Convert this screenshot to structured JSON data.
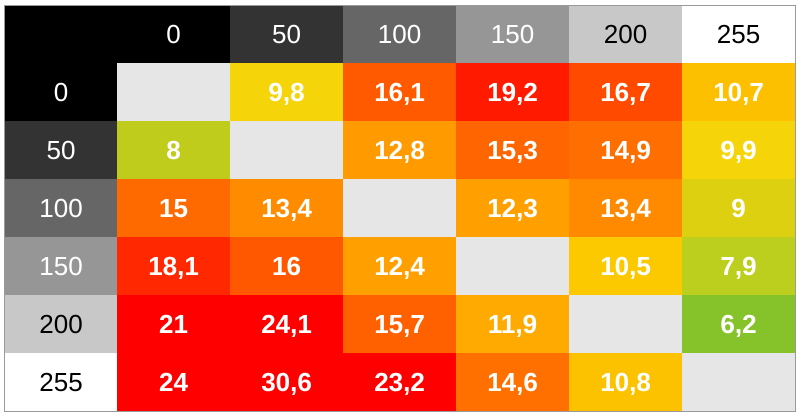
{
  "chart_data": {
    "type": "heatmap",
    "title": "",
    "corner_label": "",
    "x_labels": [
      "0",
      "50",
      "100",
      "150",
      "200",
      "255"
    ],
    "y_labels": [
      "0",
      "50",
      "100",
      "150",
      "200",
      "255"
    ],
    "header_colors": [
      "#000000",
      "#333333",
      "#666666",
      "#969696",
      "#c8c8c8",
      "#ffffff"
    ],
    "header_text_colors": [
      "#ffffff",
      "#ffffff",
      "#ffffff",
      "#ffffff",
      "#000000",
      "#000000"
    ],
    "values": [
      [
        "",
        "9,8",
        "16,1",
        "19,2",
        "16,7",
        "10,7"
      ],
      [
        "8",
        "",
        "12,8",
        "15,3",
        "14,9",
        "9,9"
      ],
      [
        "15",
        "13,4",
        "",
        "12,3",
        "13,4",
        "9"
      ],
      [
        "18,1",
        "16",
        "12,4",
        "",
        "10,5",
        "7,9"
      ],
      [
        "21",
        "24,1",
        "15,7",
        "11,9",
        "",
        "6,2"
      ],
      [
        "24",
        "30,6",
        "23,2",
        "14,6",
        "10,8",
        ""
      ]
    ],
    "cell_colors": [
      [
        "#e6e6e6",
        "#f5d50a",
        "#ff5a00",
        "#ff1a00",
        "#ff4a00",
        "#fcc000"
      ],
      [
        "#c0cc1c",
        "#e6e6e6",
        "#ff9a00",
        "#ff6500",
        "#ff6e00",
        "#f5d50a"
      ],
      [
        "#ff6a00",
        "#ff8c00",
        "#e6e6e6",
        "#ffa000",
        "#ff8a00",
        "#ddd010"
      ],
      [
        "#ff2800",
        "#ff5800",
        "#ffa000",
        "#e6e6e6",
        "#fcc800",
        "#bccf1e"
      ],
      [
        "#ff0000",
        "#ff0000",
        "#ff6000",
        "#ffaa00",
        "#e6e6e6",
        "#86c22a"
      ],
      [
        "#ff0000",
        "#ff0000",
        "#ff0000",
        "#ff7000",
        "#fcc200",
        "#e6e6e6"
      ]
    ]
  }
}
